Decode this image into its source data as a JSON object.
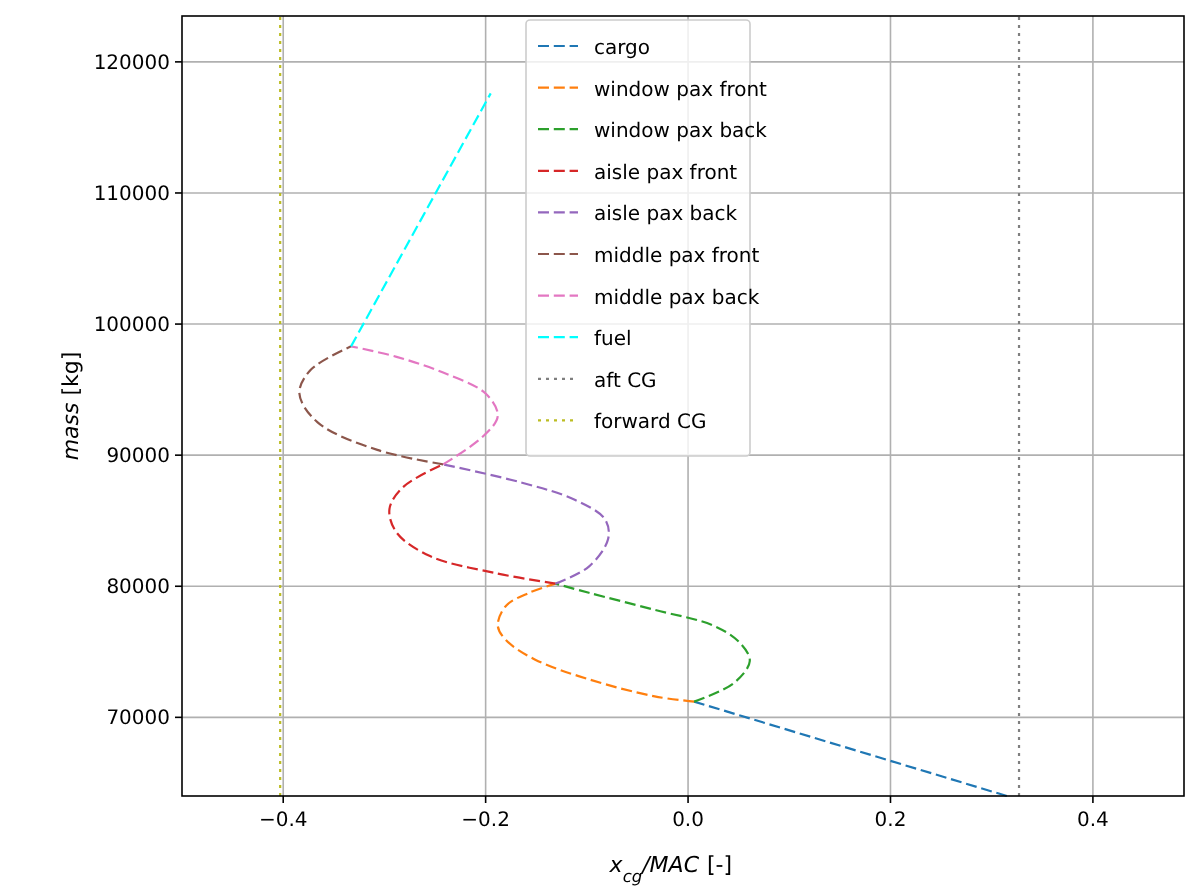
{
  "chart_data": {
    "type": "line",
    "xlabel": "x$_{cg}$/MAC [-]",
    "ylabel": "mass [kg]",
    "xlim": [
      -0.5,
      0.49
    ],
    "ylim": [
      64000,
      123500
    ],
    "xticks": [
      {
        "value": -0.4,
        "label": "−0.4"
      },
      {
        "value": -0.2,
        "label": "−0.2"
      },
      {
        "value": 0,
        "label": "0.0"
      },
      {
        "value": 0.2,
        "label": "0.2"
      },
      {
        "value": 0.4,
        "label": "0.4"
      }
    ],
    "yticks": [
      70000,
      80000,
      90000,
      100000,
      110000,
      120000
    ],
    "grid": true,
    "legend": "top",
    "marker": "none",
    "series": [
      {
        "name": "cargo",
        "color": "#1f77b4",
        "line_style": "dashed",
        "x": [
          0.315,
          0.006
        ],
        "values": [
          64000,
          71200
        ]
      },
      {
        "name": "window pax front",
        "color": "#ff7f0e",
        "line_style": "dashed",
        "x": [
          0.006,
          -0.033,
          -0.098,
          -0.151,
          -0.18,
          -0.188,
          -0.18,
          -0.157,
          -0.131
        ],
        "values": [
          71200,
          71600,
          72900,
          74400,
          75900,
          77000,
          78500,
          79500,
          80200
        ]
      },
      {
        "name": "window pax back",
        "color": "#2ca02c",
        "line_style": "dashed",
        "x": [
          0.006,
          0.045,
          0.061,
          0.051,
          0.025,
          -0.033,
          -0.098,
          -0.131
        ],
        "values": [
          71200,
          72600,
          74300,
          75700,
          77000,
          78200,
          79500,
          80200
        ]
      },
      {
        "name": "aisle pax front",
        "color": "#d62728",
        "line_style": "dashed",
        "x": [
          -0.131,
          -0.19,
          -0.255,
          -0.288,
          -0.295,
          -0.281,
          -0.242
        ],
        "values": [
          80200,
          81000,
          82300,
          84100,
          85900,
          87600,
          89300
        ]
      },
      {
        "name": "aisle pax back",
        "color": "#9467bd",
        "line_style": "dashed",
        "x": [
          -0.131,
          -0.098,
          -0.079,
          -0.082,
          -0.112,
          -0.164,
          -0.242
        ],
        "values": [
          80200,
          81500,
          83600,
          85100,
          86600,
          87900,
          89300
        ]
      },
      {
        "name": "middle pax front",
        "color": "#8c564b",
        "line_style": "dashed",
        "x": [
          -0.242,
          -0.307,
          -0.366,
          -0.384,
          -0.373,
          -0.333
        ],
        "values": [
          89300,
          90400,
          92500,
          94700,
          96500,
          98300
        ]
      },
      {
        "name": "middle pax back",
        "color": "#e377c2",
        "line_style": "dashed",
        "x": [
          -0.242,
          -0.203,
          -0.188,
          -0.2,
          -0.242,
          -0.288,
          -0.333
        ],
        "values": [
          89300,
          91400,
          93000,
          94700,
          96300,
          97500,
          98300
        ]
      },
      {
        "name": "fuel",
        "color": "#00ffff",
        "line_style": "dashed",
        "x": [
          -0.333,
          -0.195
        ],
        "values": [
          98300,
          117600
        ]
      },
      {
        "name": "aft CG",
        "color": "#7f7f7f",
        "line_style": "dotted",
        "x": [
          0.327,
          0.327
        ],
        "values": [
          64000,
          123500
        ]
      },
      {
        "name": "forward CG",
        "color": "#bcbd22",
        "line_style": "dotted",
        "x": [
          -0.403,
          -0.403
        ],
        "values": [
          64000,
          123500
        ]
      }
    ]
  }
}
